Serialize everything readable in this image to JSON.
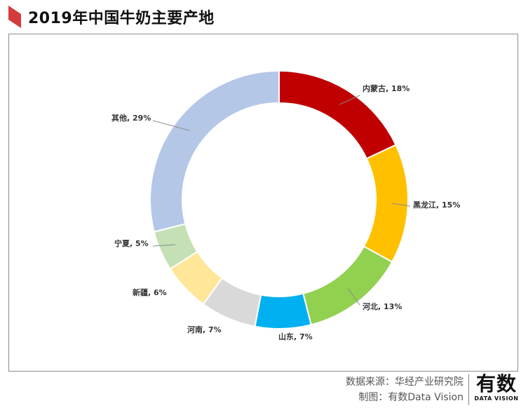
{
  "header": {
    "title": "2019年中国牛奶主要产地"
  },
  "footer": {
    "source": "数据来源：华经产业研究院",
    "maker": "制图：有数Data Vision",
    "brand_main": "有数",
    "brand_sub": "DATA VISION"
  },
  "colors": {
    "flag": "#d63b3b",
    "frame": "#8c8c8c"
  },
  "chart_data": {
    "type": "pie",
    "style": "donut",
    "categories": [
      "内蒙古",
      "黑龙江",
      "河北",
      "山东",
      "河南",
      "新疆",
      "宁夏",
      "其他"
    ],
    "values": [
      18,
      15,
      13,
      7,
      7,
      6,
      5,
      29
    ],
    "unit": "%",
    "labels": [
      "内蒙古, 18%",
      "黑龙江, 15%",
      "河北, 13%",
      "山东, 7%",
      "河南, 7%",
      "新疆, 6%",
      "宁夏, 5%",
      "其他, 29%"
    ],
    "colors": [
      "#c00000",
      "#ffc000",
      "#92d050",
      "#00b0f0",
      "#d9d9d9",
      "#ffe699",
      "#c5e0b4",
      "#b4c7e7"
    ],
    "legend": "none"
  }
}
